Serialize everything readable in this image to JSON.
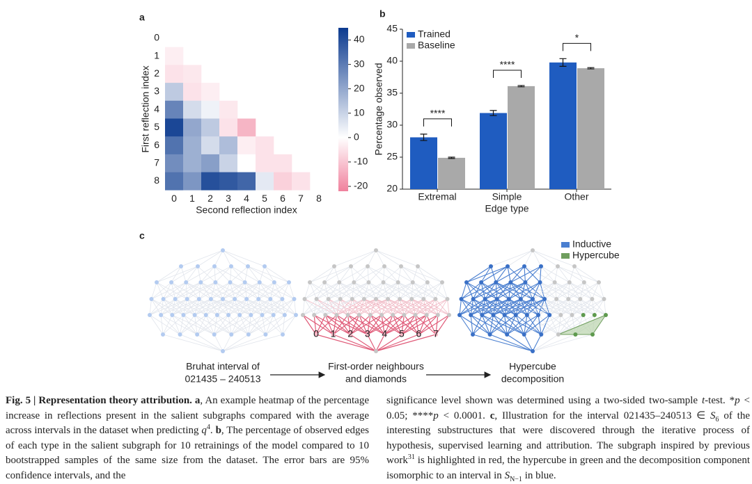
{
  "panel_labels": [
    "a",
    "b",
    "c"
  ],
  "chart_data": [
    {
      "type": "heatmap",
      "x_label": "Second reflection index",
      "y_label": "First reflection index",
      "x_categories": [
        0,
        1,
        2,
        3,
        4,
        5,
        6,
        7,
        8
      ],
      "y_categories": [
        0,
        1,
        2,
        3,
        4,
        5,
        6,
        7,
        8
      ],
      "values": [
        [
          null,
          null,
          null,
          null,
          null,
          null,
          null,
          null,
          null
        ],
        [
          -3,
          null,
          null,
          null,
          null,
          null,
          null,
          null,
          null
        ],
        [
          -5,
          -4,
          null,
          null,
          null,
          null,
          null,
          null,
          null
        ],
        [
          12,
          -5,
          -3,
          null,
          null,
          null,
          null,
          null,
          null
        ],
        [
          28,
          8,
          3,
          -4,
          null,
          null,
          null,
          null,
          null
        ],
        [
          42,
          20,
          12,
          -5,
          -13,
          null,
          null,
          null,
          null
        ],
        [
          32,
          18,
          8,
          15,
          -3,
          -5,
          null,
          null,
          null
        ],
        [
          26,
          18,
          22,
          10,
          0,
          -5,
          -5,
          null,
          null
        ],
        [
          32,
          24,
          40,
          38,
          35,
          5,
          -8,
          -5,
          null
        ]
      ],
      "clim": [
        -22,
        45
      ],
      "cticks": [
        -20,
        -10,
        0,
        10,
        20,
        30,
        40
      ],
      "colors": [
        "#f0819d",
        "#ffffff",
        "#0b3a8f"
      ]
    },
    {
      "type": "bar",
      "x_label": "Edge type",
      "y_label": "Percentage observed",
      "categories": [
        "Extremal",
        "Simple",
        "Other"
      ],
      "series": [
        {
          "name": "Trained",
          "color": "#1f5cc0",
          "values": [
            28.1,
            31.9,
            39.8
          ],
          "errors": [
            0.5,
            0.4,
            0.6
          ]
        },
        {
          "name": "Baseline",
          "color": "#a9a9a9",
          "values": [
            24.9,
            36.1,
            38.9
          ],
          "errors": [
            0.1,
            0.1,
            0.1
          ]
        }
      ],
      "annotations": [
        "****",
        "****",
        "*"
      ],
      "ylim": [
        20,
        45
      ],
      "yticks": [
        20,
        25,
        30,
        35,
        40,
        45
      ],
      "legend": "upper left"
    }
  ],
  "diagram": {
    "legend": [
      {
        "name": "Inductive",
        "color": "#4a7fd0"
      },
      {
        "name": "Hypercube",
        "color": "#6f9e5e"
      }
    ],
    "diamond_labels": [
      "0",
      "1",
      "2",
      "3",
      "4",
      "5",
      "6",
      "7"
    ],
    "steps": [
      {
        "lines": [
          "Bruhat interval of",
          "021435 – 240513"
        ]
      },
      {
        "lines": [
          "First-order neighbours",
          "and diamonds"
        ]
      },
      {
        "lines": [
          "Hypercube",
          "decomposition"
        ]
      }
    ]
  },
  "caption": {
    "left": [
      {
        "style": "b",
        "text": "Fig. 5 | Representation theory attribution. a"
      },
      {
        "style": "n",
        "text": ", An example heatmap of the percentage increase in reflections present in the salient subgraphs compared with the average across intervals in the dataset when predicting "
      },
      {
        "style": "i",
        "text": "q"
      },
      {
        "style": "sup",
        "text": "4"
      },
      {
        "style": "n",
        "text": ". "
      },
      {
        "style": "b",
        "text": "b"
      },
      {
        "style": "n",
        "text": ", The percentage of observed edges of each type in the salient subgraph for 10 retrainings of the model compared to 10 bootstrapped samples of the same size from the dataset. The error bars are 95% confidence intervals, and the"
      }
    ],
    "right": [
      {
        "style": "n",
        "text": "significance level shown was determined using a two-sided two-sample "
      },
      {
        "style": "i",
        "text": "t"
      },
      {
        "style": "n",
        "text": "-test. *"
      },
      {
        "style": "i",
        "text": "p"
      },
      {
        "style": "n",
        "text": " < 0.05; ****"
      },
      {
        "style": "i",
        "text": "p"
      },
      {
        "style": "n",
        "text": " < 0.0001. "
      },
      {
        "style": "b",
        "text": "c"
      },
      {
        "style": "n",
        "text": ", Illustration for the interval 021435–240513 ∈ "
      },
      {
        "style": "i",
        "text": "S"
      },
      {
        "style": "sub",
        "text": "6"
      },
      {
        "style": "n",
        "text": " of the interesting substructures that were discovered through the iterative process of hypothesis, supervised learning and attribution. The subgraph inspired by previous work"
      },
      {
        "style": "sup",
        "text": "31"
      },
      {
        "style": "n",
        "text": " is highlighted in red, the hypercube in green and the decomposition component isomorphic to an interval in "
      },
      {
        "style": "i",
        "text": "S"
      },
      {
        "style": "sub",
        "text": "N−1"
      },
      {
        "style": "n",
        "text": " in blue."
      }
    ]
  }
}
